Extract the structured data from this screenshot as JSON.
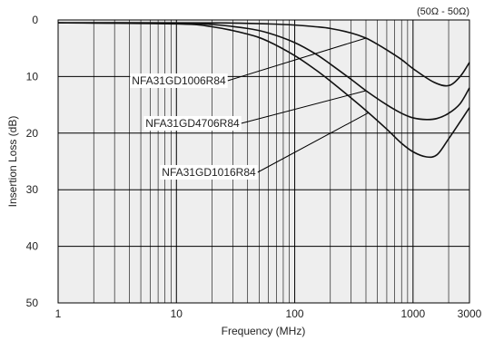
{
  "chart_data": {
    "type": "line",
    "title": "",
    "note": "(50Ω - 50Ω)",
    "xlabel": "Frequency (MHz)",
    "ylabel": "Insertion Loss (dB)",
    "x_scale": "log",
    "xlim": [
      1,
      3000
    ],
    "ylim": [
      0,
      50
    ],
    "y_inverted": true,
    "grid": true,
    "legend": "none",
    "background": "#eeeeee",
    "line_color": "#111111",
    "x_ticks": [
      1,
      10,
      100,
      1000,
      3000
    ],
    "x_tick_labels": [
      "1",
      "10",
      "100",
      "1000",
      "3000"
    ],
    "y_ticks": [
      0,
      10,
      20,
      30,
      40,
      50
    ],
    "y_tick_labels": [
      "0",
      "10",
      "20",
      "30",
      "40",
      "50"
    ],
    "series": [
      {
        "name": "NFA31GD1006R84",
        "x": [
          1,
          10,
          30,
          60,
          100,
          150,
          200,
          300,
          400,
          500,
          600,
          800,
          1000,
          1500,
          2000,
          2500,
          3000
        ],
        "y": [
          0.5,
          0.5,
          0.55,
          0.7,
          0.9,
          1.2,
          1.5,
          2.3,
          3.2,
          4.3,
          5.3,
          7.0,
          8.6,
          11.0,
          11.6,
          10.0,
          7.5
        ]
      },
      {
        "name": "NFA31GD4706R84",
        "x": [
          1,
          10,
          20,
          40,
          60,
          100,
          150,
          200,
          300,
          400,
          600,
          800,
          1000,
          1300,
          1600,
          2000,
          2500,
          3000
        ],
        "y": [
          0.5,
          0.6,
          0.8,
          1.5,
          2.3,
          4.0,
          6.0,
          7.8,
          10.5,
          12.5,
          15.0,
          16.5,
          17.3,
          17.6,
          17.4,
          16.5,
          14.8,
          12.0
        ]
      },
      {
        "name": "NFA31GD1016R84",
        "x": [
          1,
          10,
          20,
          40,
          60,
          100,
          150,
          200,
          300,
          400,
          600,
          800,
          1000,
          1300,
          1600,
          2000,
          2500,
          3000
        ],
        "y": [
          0.5,
          0.7,
          1.2,
          2.5,
          3.8,
          6.3,
          8.8,
          10.8,
          13.8,
          16.0,
          19.3,
          21.8,
          23.3,
          24.2,
          23.8,
          21.0,
          18.0,
          15.5
        ]
      }
    ],
    "annotations": [
      {
        "text": "NFA31GD1006R84",
        "series": "NFA31GD1006R84"
      },
      {
        "text": "NFA31GD4706R84",
        "series": "NFA31GD4706R84"
      },
      {
        "text": "NFA31GD1016R84",
        "series": "NFA31GD1016R84"
      }
    ]
  }
}
